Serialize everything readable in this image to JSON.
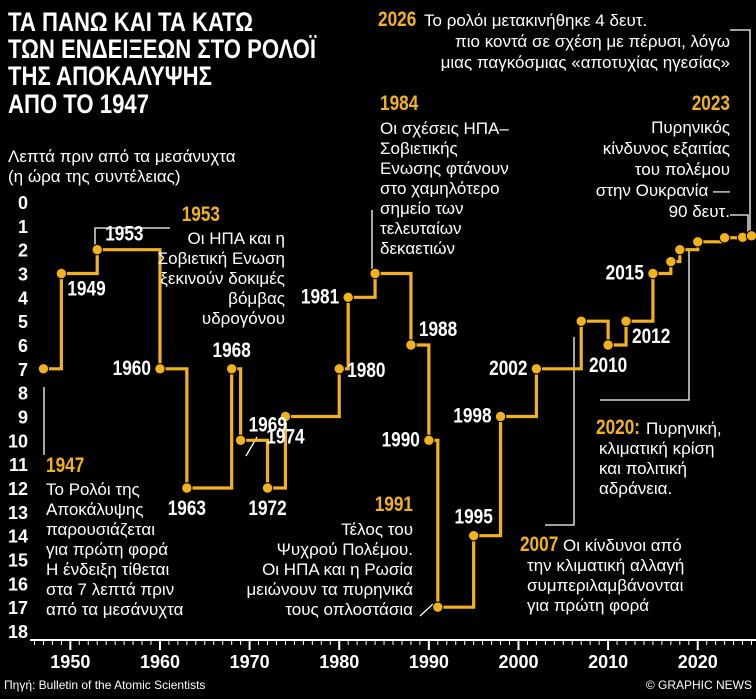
{
  "colors": {
    "background": "#000000",
    "line": "#f2b21e",
    "accent": "#f2b21e",
    "text": "#ffffff",
    "leader": "#ffffff"
  },
  "chart_data": {
    "type": "line",
    "step": true,
    "title": [
      "ΤΑ ΠΑΝΩ ΚΑΙ ΤΑ ΚΑΤΩ",
      "ΤΩΝ ΕΝΔΕΙΞΕΩΝ ΣΤΟ ΡΟΛΟΪ",
      "ΤΗΣ ΑΠΟΚΑΛΥΨΗΣ",
      "ΑΠΟ ΤΟ 1947"
    ],
    "ylabel": [
      "Λεπτά πριν από τα μεσάνυχτα",
      "(η ώρα της συντέλειας)"
    ],
    "xlim": [
      1945.5,
      2026.5
    ],
    "ylim": [
      0,
      18
    ],
    "yticks": [
      "0",
      "1",
      "2",
      "3",
      "4",
      "5",
      "6",
      "7",
      "8",
      "9",
      "10",
      "11",
      "12",
      "13",
      "14",
      "15",
      "16",
      "17",
      "18"
    ],
    "xticks": [
      {
        "label": "1950",
        "value": 1950
      },
      {
        "label": "1960",
        "value": 1960
      },
      {
        "label": "1970",
        "value": 1970
      },
      {
        "label": "1980",
        "value": 1980
      },
      {
        "label": "1990",
        "value": 1990
      },
      {
        "label": "2000",
        "value": 2000
      },
      {
        "label": "2010",
        "value": 2010
      },
      {
        "label": "2020",
        "value": 2020
      }
    ],
    "points": [
      {
        "year": 1947,
        "minutes": 7
      },
      {
        "year": 1949,
        "minutes": 3
      },
      {
        "year": 1953,
        "minutes": 2
      },
      {
        "year": 1960,
        "minutes": 7
      },
      {
        "year": 1963,
        "minutes": 12
      },
      {
        "year": 1968,
        "minutes": 7
      },
      {
        "year": 1969,
        "minutes": 10
      },
      {
        "year": 1972,
        "minutes": 12
      },
      {
        "year": 1974,
        "minutes": 9
      },
      {
        "year": 1980,
        "minutes": 7
      },
      {
        "year": 1981,
        "minutes": 4
      },
      {
        "year": 1984,
        "minutes": 3
      },
      {
        "year": 1988,
        "minutes": 6
      },
      {
        "year": 1990,
        "minutes": 10
      },
      {
        "year": 1991,
        "minutes": 17
      },
      {
        "year": 1995,
        "minutes": 14
      },
      {
        "year": 1998,
        "minutes": 9
      },
      {
        "year": 2002,
        "minutes": 7
      },
      {
        "year": 2007,
        "minutes": 5
      },
      {
        "year": 2010,
        "minutes": 6
      },
      {
        "year": 2012,
        "minutes": 5
      },
      {
        "year": 2015,
        "minutes": 3
      },
      {
        "year": 2017,
        "minutes": 2.5
      },
      {
        "year": 2018,
        "minutes": 2
      },
      {
        "year": 2020,
        "minutes": 1.67
      },
      {
        "year": 2023,
        "minutes": 1.5
      },
      {
        "year": 2025,
        "minutes": 1.48
      },
      {
        "year": 2026,
        "minutes": 1.42
      }
    ],
    "year_labels": [
      {
        "text": "1949",
        "year": 1949,
        "minutes": 3,
        "anchor": "below-right"
      },
      {
        "text": "1953",
        "year": 1953,
        "minutes": 2,
        "anchor": "above-right"
      },
      {
        "text": "1960",
        "year": 1960,
        "minutes": 7,
        "anchor": "left"
      },
      {
        "text": "1963",
        "year": 1963,
        "minutes": 12,
        "anchor": "below"
      },
      {
        "text": "1968",
        "year": 1968,
        "minutes": 7,
        "anchor": "above"
      },
      {
        "text": "1969",
        "year": 1969,
        "minutes": 10,
        "anchor": "above-right"
      },
      {
        "text": "1972",
        "year": 1972,
        "minutes": 12,
        "anchor": "below"
      },
      {
        "text": "1974",
        "year": 1974,
        "minutes": 9,
        "anchor": "below"
      },
      {
        "text": "1980",
        "year": 1980,
        "minutes": 7,
        "anchor": "right"
      },
      {
        "text": "1981",
        "year": 1981,
        "minutes": 4,
        "anchor": "left"
      },
      {
        "text": "1988",
        "year": 1988,
        "minutes": 6,
        "anchor": "above-right"
      },
      {
        "text": "1990",
        "year": 1990,
        "minutes": 10,
        "anchor": "left"
      },
      {
        "text": "1995",
        "year": 1995,
        "minutes": 14,
        "anchor": "above"
      },
      {
        "text": "1998",
        "year": 1998,
        "minutes": 9,
        "anchor": "left"
      },
      {
        "text": "2002",
        "year": 2002,
        "minutes": 7,
        "anchor": "left"
      },
      {
        "text": "2010",
        "year": 2010,
        "minutes": 6,
        "anchor": "below"
      },
      {
        "text": "2012",
        "year": 2012,
        "minutes": 5,
        "anchor": "below-right"
      },
      {
        "text": "2015",
        "year": 2015,
        "minutes": 3,
        "anchor": "left"
      }
    ],
    "annotations": [
      {
        "year_label": "1947",
        "lines": [
          "Το Ρολόι της",
          "Αποκάλυψης",
          "παρουσιάζεται",
          "για πρώτη φορά",
          "Η ένδειξη τίθεται",
          "στα 7 λεπτά πριν",
          "από τα μεσάνυχτα"
        ]
      },
      {
        "year_label": "1953",
        "lines": [
          "Οι ΗΠΑ και η",
          "Σοβιετική Ενωση",
          "ξεκινούν δοκιμές",
          "βόμβας",
          "υδρογόνου"
        ]
      },
      {
        "year_label": "1984",
        "lines": [
          "Οι σχέσεις ΗΠΑ–",
          "Σοβιετικής",
          "Ενωσης φτάνουν",
          "στο χαμηλότερο",
          "σημείο των",
          "τελευταίων",
          "δεκαετιών"
        ]
      },
      {
        "year_label": "1991",
        "lines": [
          "Τέλος του",
          "Ψυχρού Πολέμου.",
          "Οι ΗΠΑ και η Ρωσία",
          "μειώνουν τα πυρηνικά",
          "τους οπλοστάσια"
        ]
      },
      {
        "year_label": "2007",
        "lines": [
          "Οι κίνδυνοι από",
          "την κλιματική αλλαγή",
          "συμπεριλαμβάνονται",
          "για πρώτη φορά"
        ]
      },
      {
        "year_label": "2020:",
        "lines": [
          "Πυρηνική,",
          "κλιματική κρίση",
          "και πολιτική",
          "αδράνεια."
        ]
      },
      {
        "year_label": "2023",
        "lines": [
          "Πυρηνικός",
          "κίνδυνος εξαιτίας",
          "του πολέμου",
          "στην Ουκρανία —",
          "90 δευτ."
        ]
      },
      {
        "year_label": "2026",
        "lines": [
          "Το ρολόι μετακινήθηκε 4 δευτ.",
          "πιο κοντά σε σχέση με πέρυσι, λόγω",
          "μιας παγκόσμιας «αποτυχίας ηγεσίας»"
        ]
      }
    ],
    "source": "Πηγή: Bulletin of the Atomic Scientists",
    "credit": "© GRAPHIC NEWS"
  }
}
